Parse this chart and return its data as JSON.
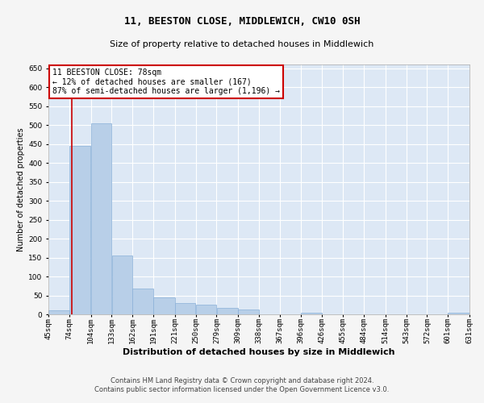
{
  "title": "11, BEESTON CLOSE, MIDDLEWICH, CW10 0SH",
  "subtitle": "Size of property relative to detached houses in Middlewich",
  "xlabel": "Distribution of detached houses by size in Middlewich",
  "ylabel": "Number of detached properties",
  "footer_line1": "Contains HM Land Registry data © Crown copyright and database right 2024.",
  "footer_line2": "Contains public sector information licensed under the Open Government Licence v3.0.",
  "annotation_title": "11 BEESTON CLOSE: 78sqm",
  "annotation_line1": "← 12% of detached houses are smaller (167)",
  "annotation_line2": "87% of semi-detached houses are larger (1,196) →",
  "property_size": 78,
  "bar_edges": [
    45,
    74,
    104,
    133,
    162,
    191,
    221,
    250,
    279,
    309,
    338,
    367,
    396,
    426,
    455,
    484,
    514,
    543,
    572,
    601,
    631
  ],
  "bar_values": [
    10,
    445,
    505,
    155,
    68,
    45,
    30,
    25,
    18,
    12,
    0,
    0,
    5,
    0,
    0,
    0,
    0,
    0,
    0,
    5
  ],
  "bar_color": "#b8cfe8",
  "bar_edge_color": "#8ab0d8",
  "red_line_color": "#cc0000",
  "annotation_box_color": "#cc0000",
  "background_color": "#dde8f5",
  "grid_color": "#ffffff",
  "fig_background": "#f5f5f5",
  "ylim": [
    0,
    660
  ],
  "yticks": [
    0,
    50,
    100,
    150,
    200,
    250,
    300,
    350,
    400,
    450,
    500,
    550,
    600,
    650
  ],
  "title_fontsize": 9,
  "subtitle_fontsize": 8,
  "xlabel_fontsize": 8,
  "ylabel_fontsize": 7,
  "tick_fontsize": 6.5,
  "annotation_fontsize": 7,
  "footer_fontsize": 6
}
